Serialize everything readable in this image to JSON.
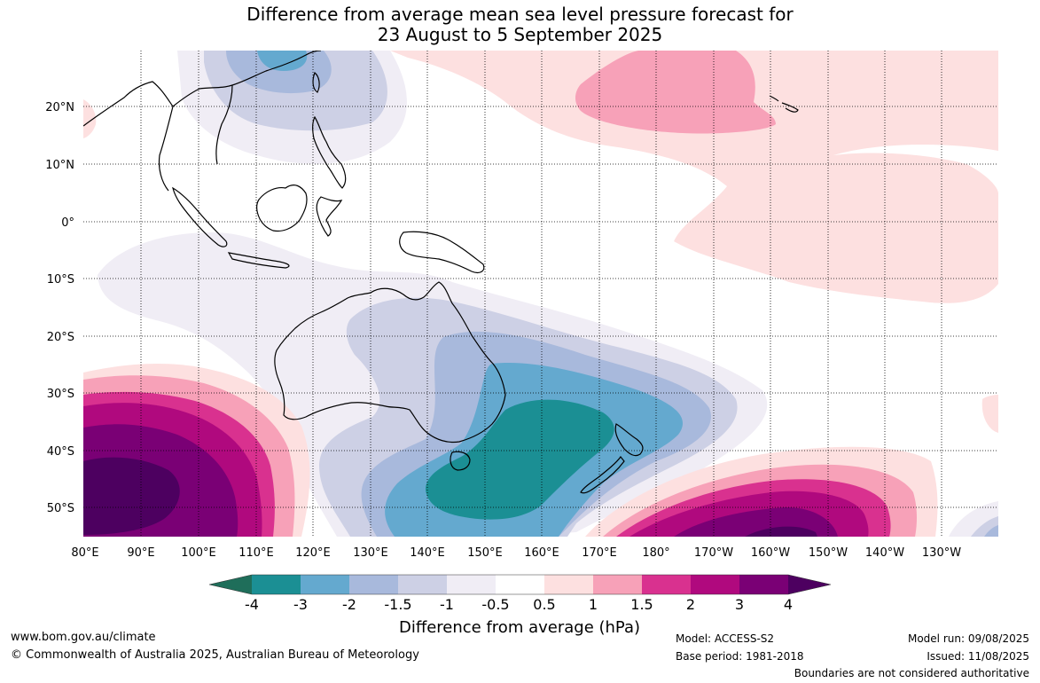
{
  "title_line1": "Difference from average mean sea level pressure forecast for",
  "title_line2": "23 August to 5 September 2025",
  "lat_labels": [
    "20°N",
    "10°N",
    "0°",
    "10°S",
    "20°S",
    "30°S",
    "40°S",
    "50°S"
  ],
  "lon_labels": [
    "80°E",
    "90°E",
    "100°E",
    "110°E",
    "120°E",
    "130°E",
    "140°E",
    "150°E",
    "160°E",
    "170°E",
    "180°",
    "170°W",
    "160°W",
    "150°W",
    "140°W",
    "130°W"
  ],
  "legend": {
    "tick_labels": [
      "-4",
      "-3",
      "-2",
      "-1.5",
      "-1",
      "-0.5",
      "0.5",
      "1",
      "1.5",
      "2",
      "3",
      "4"
    ],
    "title": "Difference from average (hPa)",
    "colors": [
      "#1f6e5a",
      "#1b8f94",
      "#64a9cf",
      "#a8b9dc",
      "#cdd0e5",
      "#f0edf5",
      "#ffffff",
      "#fde0e0",
      "#f7a1b8",
      "#d9318f",
      "#b0097e",
      "#7a0075",
      "#4d0060"
    ]
  },
  "footer": {
    "website": "www.bom.gov.au/climate",
    "copyright": "© Commonwealth of Australia 2025, Australian Bureau of Meteorology",
    "model": "Model: ACCESS-S2",
    "base_period": "Base period: 1981-2018",
    "model_run": "Model run: 09/08/2025",
    "issued": "Issued: 11/08/2025",
    "disclaimer": "Boundaries are not considered authoritative"
  }
}
